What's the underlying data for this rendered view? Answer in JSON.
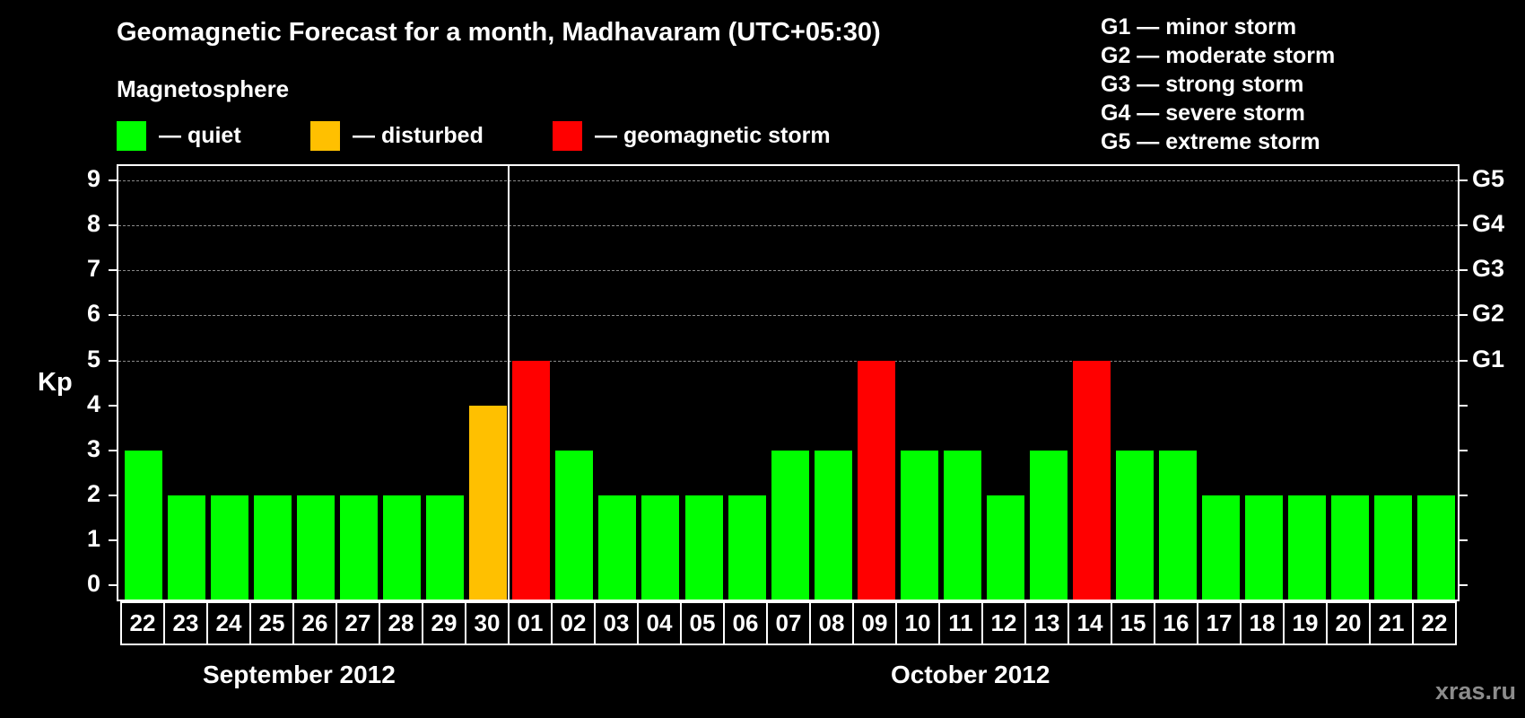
{
  "header": {
    "title": "Geomagnetic Forecast for a month, Madhavaram (UTC+05:30)",
    "subtitle": "Magnetosphere"
  },
  "legend": {
    "items": [
      {
        "label": "— quiet",
        "color": "#00ff00"
      },
      {
        "label": "— disturbed",
        "color": "#ffc000"
      },
      {
        "label": "— geomagnetic storm",
        "color": "#ff0000"
      }
    ]
  },
  "storm_scale": [
    "G1 — minor storm",
    "G2 — moderate storm",
    "G3 — strong storm",
    "G4 — severe storm",
    "G5 — extreme storm"
  ],
  "axis": {
    "y_label": "Kp",
    "y_ticks": [
      "0",
      "1",
      "2",
      "3",
      "4",
      "5",
      "6",
      "7",
      "8",
      "9"
    ],
    "g_ticks": [
      {
        "kp": 5,
        "label": "G1"
      },
      {
        "kp": 6,
        "label": "G2"
      },
      {
        "kp": 7,
        "label": "G3"
      },
      {
        "kp": 8,
        "label": "G4"
      },
      {
        "kp": 9,
        "label": "G5"
      }
    ],
    "months": [
      {
        "label": "September 2012"
      },
      {
        "label": "October 2012"
      }
    ]
  },
  "watermark": "xras.ru",
  "chart_data": {
    "type": "bar",
    "title": "Geomagnetic Forecast for a month, Madhavaram (UTC+05:30)",
    "xlabel": "",
    "ylabel": "Kp",
    "ylim": [
      0,
      9
    ],
    "grid": true,
    "categories": [
      "22",
      "23",
      "24",
      "25",
      "26",
      "27",
      "28",
      "29",
      "30",
      "01",
      "02",
      "03",
      "04",
      "05",
      "06",
      "07",
      "08",
      "09",
      "10",
      "11",
      "12",
      "13",
      "14",
      "15",
      "16",
      "17",
      "18",
      "19",
      "20",
      "21",
      "22"
    ],
    "month_groups": [
      {
        "label": "September 2012",
        "start": 0,
        "end": 8
      },
      {
        "label": "October 2012",
        "start": 9,
        "end": 30
      }
    ],
    "values": [
      3,
      2,
      2,
      2,
      2,
      2,
      2,
      2,
      4,
      5,
      3,
      2,
      2,
      2,
      2,
      3,
      3,
      5,
      3,
      3,
      2,
      3,
      5,
      3,
      3,
      2,
      2,
      2,
      2,
      2,
      2
    ],
    "status": [
      "quiet",
      "quiet",
      "quiet",
      "quiet",
      "quiet",
      "quiet",
      "quiet",
      "quiet",
      "disturbed",
      "storm",
      "quiet",
      "quiet",
      "quiet",
      "quiet",
      "quiet",
      "quiet",
      "quiet",
      "storm",
      "quiet",
      "quiet",
      "quiet",
      "quiet",
      "storm",
      "quiet",
      "quiet",
      "quiet",
      "quiet",
      "quiet",
      "quiet",
      "quiet",
      "quiet"
    ],
    "colors": {
      "quiet": "#00ff00",
      "disturbed": "#ffc000",
      "storm": "#ff0000"
    },
    "right_axis": {
      "5": "G1",
      "6": "G2",
      "7": "G3",
      "8": "G4",
      "9": "G5"
    },
    "legend": [
      "quiet",
      "disturbed",
      "geomagnetic storm"
    ]
  }
}
